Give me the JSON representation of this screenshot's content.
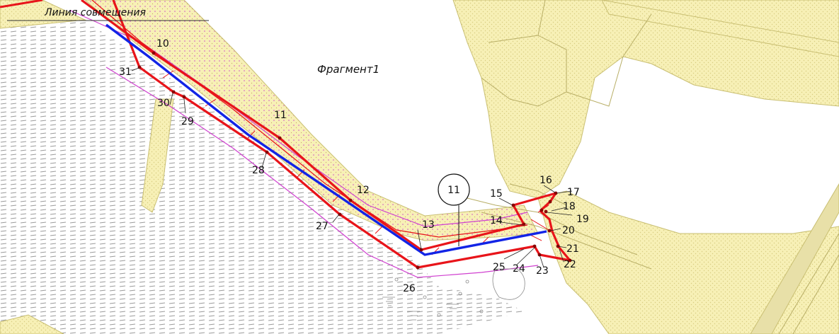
{
  "map": {
    "alignment_line_label": "Линия совмещения",
    "fragment_label": "Фрагмент1",
    "circle_label": "11",
    "point_labels": {
      "p10": "10",
      "p31": "31",
      "p30": "30",
      "p29": "29",
      "p11": "11",
      "p28": "28",
      "p12": "12",
      "p27": "27",
      "p13": "13",
      "p26": "26",
      "p14": "14",
      "p15": "15",
      "p16": "16",
      "p17": "17",
      "p18": "18",
      "p19": "19",
      "p20": "20",
      "p21": "21",
      "p22": "22",
      "p23": "23",
      "p24": "24",
      "p25": "25"
    },
    "colors": {
      "land": "#f7f0b6",
      "land_edge": "#c9bf73",
      "boundary": "#e8141a",
      "axis": "#1224e6",
      "zone": "#d040d0",
      "hatch": "#999999"
    }
  }
}
